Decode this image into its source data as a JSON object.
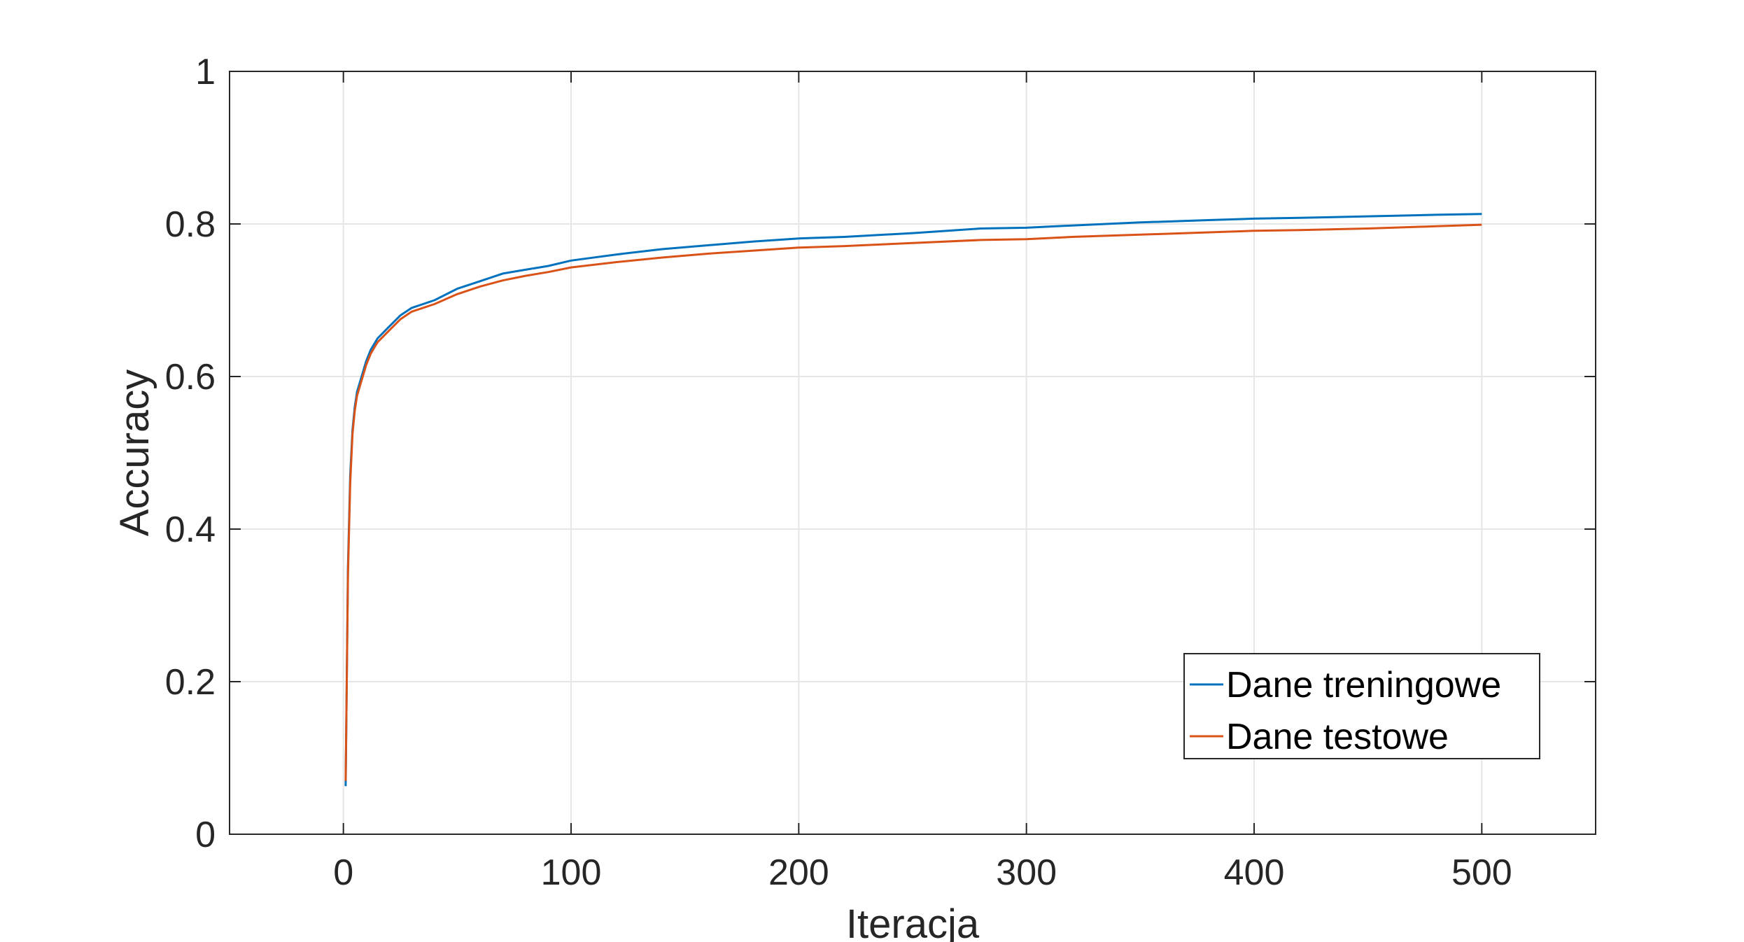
{
  "chart_data": {
    "type": "line",
    "title": "",
    "xlabel": "Iteracja",
    "ylabel": "Accuracy",
    "xlim": [
      -50,
      550
    ],
    "ylim": [
      0,
      1
    ],
    "xticks": [
      0,
      100,
      200,
      300,
      400,
      500
    ],
    "yticks": [
      0,
      0.2,
      0.4,
      0.6,
      0.8,
      1
    ],
    "xtick_labels": [
      "0",
      "100",
      "200",
      "300",
      "400",
      "500"
    ],
    "ytick_labels": [
      "0",
      "0.2",
      "0.4",
      "0.6",
      "0.8",
      "1"
    ],
    "grid": true,
    "legend_position": "lower-right",
    "x": [
      1,
      2,
      3,
      4,
      5,
      6,
      8,
      10,
      12,
      15,
      20,
      25,
      30,
      40,
      50,
      60,
      70,
      80,
      90,
      100,
      120,
      140,
      160,
      180,
      200,
      220,
      250,
      280,
      300,
      320,
      350,
      380,
      400,
      420,
      450,
      480,
      500
    ],
    "series": [
      {
        "name": "Dane treningowe",
        "color": "#0072BD",
        "values": [
          0.063,
          0.35,
          0.47,
          0.53,
          0.56,
          0.58,
          0.6,
          0.62,
          0.635,
          0.65,
          0.665,
          0.68,
          0.69,
          0.7,
          0.715,
          0.725,
          0.735,
          0.74,
          0.745,
          0.752,
          0.76,
          0.767,
          0.772,
          0.777,
          0.781,
          0.783,
          0.788,
          0.794,
          0.795,
          0.798,
          0.802,
          0.805,
          0.807,
          0.808,
          0.81,
          0.812,
          0.813
        ]
      },
      {
        "name": "Dane testowe",
        "color": "#D95319",
        "values": [
          0.07,
          0.34,
          0.46,
          0.525,
          0.555,
          0.575,
          0.595,
          0.615,
          0.63,
          0.645,
          0.66,
          0.675,
          0.685,
          0.695,
          0.708,
          0.718,
          0.726,
          0.732,
          0.737,
          0.743,
          0.75,
          0.756,
          0.761,
          0.765,
          0.769,
          0.771,
          0.775,
          0.779,
          0.78,
          0.783,
          0.786,
          0.789,
          0.791,
          0.792,
          0.794,
          0.797,
          0.799
        ]
      }
    ]
  }
}
